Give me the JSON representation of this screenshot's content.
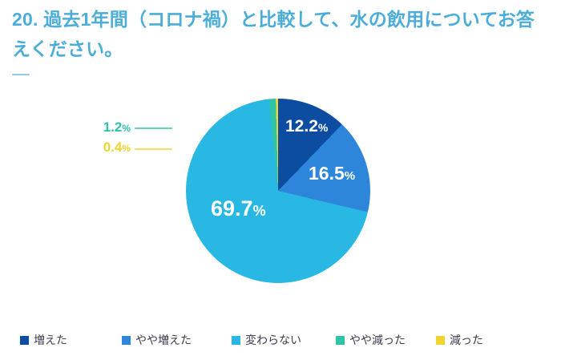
{
  "title": "20. 過去1年間（コロナ禍）と比較して、水の飲用についてお答えください。",
  "chart_data": {
    "type": "pie",
    "title": "20. 過去1年間（コロナ禍）と比較して、水の飲用についてお答えください。",
    "unit": "%",
    "start_angle_deg": 0,
    "direction": "clockwise",
    "legend_position": "bottom",
    "series": [
      {
        "label": "増えた",
        "value": 12.2,
        "display": "12.2",
        "color": "#0C4DA2"
      },
      {
        "label": "やや増えた",
        "value": 16.5,
        "display": "16.5",
        "color": "#2E86DB"
      },
      {
        "label": "変わらない",
        "value": 69.7,
        "display": "69.7",
        "color": "#29B7E4"
      },
      {
        "label": "やや減った",
        "value": 1.2,
        "display": "1.2",
        "color": "#2EC4A7"
      },
      {
        "label": "減った",
        "value": 0.4,
        "display": "0.4",
        "color": "#F2D42E"
      }
    ]
  },
  "theme": {
    "title_color": "#4BADD8",
    "slice_label_color": "#FFFFFF",
    "legend_text_color": "#3D3D4D",
    "background": "#FFFFFF"
  }
}
